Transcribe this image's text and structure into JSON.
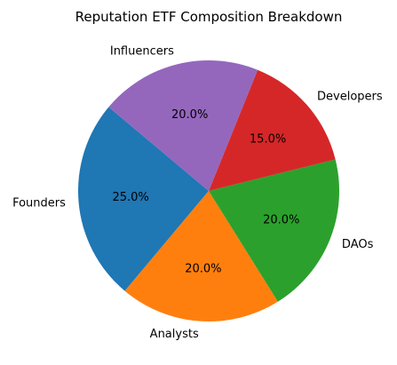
{
  "chart_data": {
    "type": "pie",
    "title": "Reputation ETF Composition Breakdown",
    "start_angle_deg": 140,
    "direction": "counterclockwise",
    "autopct_format": "{:.1f}%",
    "slices": [
      {
        "label": "Founders",
        "value": 25,
        "pct_label": "25.0%",
        "color": "#1f77b4"
      },
      {
        "label": "Analysts",
        "value": 20,
        "pct_label": "20.0%",
        "color": "#ff7f0e"
      },
      {
        "label": "DAOs",
        "value": 20,
        "pct_label": "20.0%",
        "color": "#2ca02c"
      },
      {
        "label": "Developers",
        "value": 15,
        "pct_label": "15.0%",
        "color": "#d62728"
      },
      {
        "label": "Influencers",
        "value": 20,
        "pct_label": "20.0%",
        "color": "#9467bd"
      }
    ]
  }
}
